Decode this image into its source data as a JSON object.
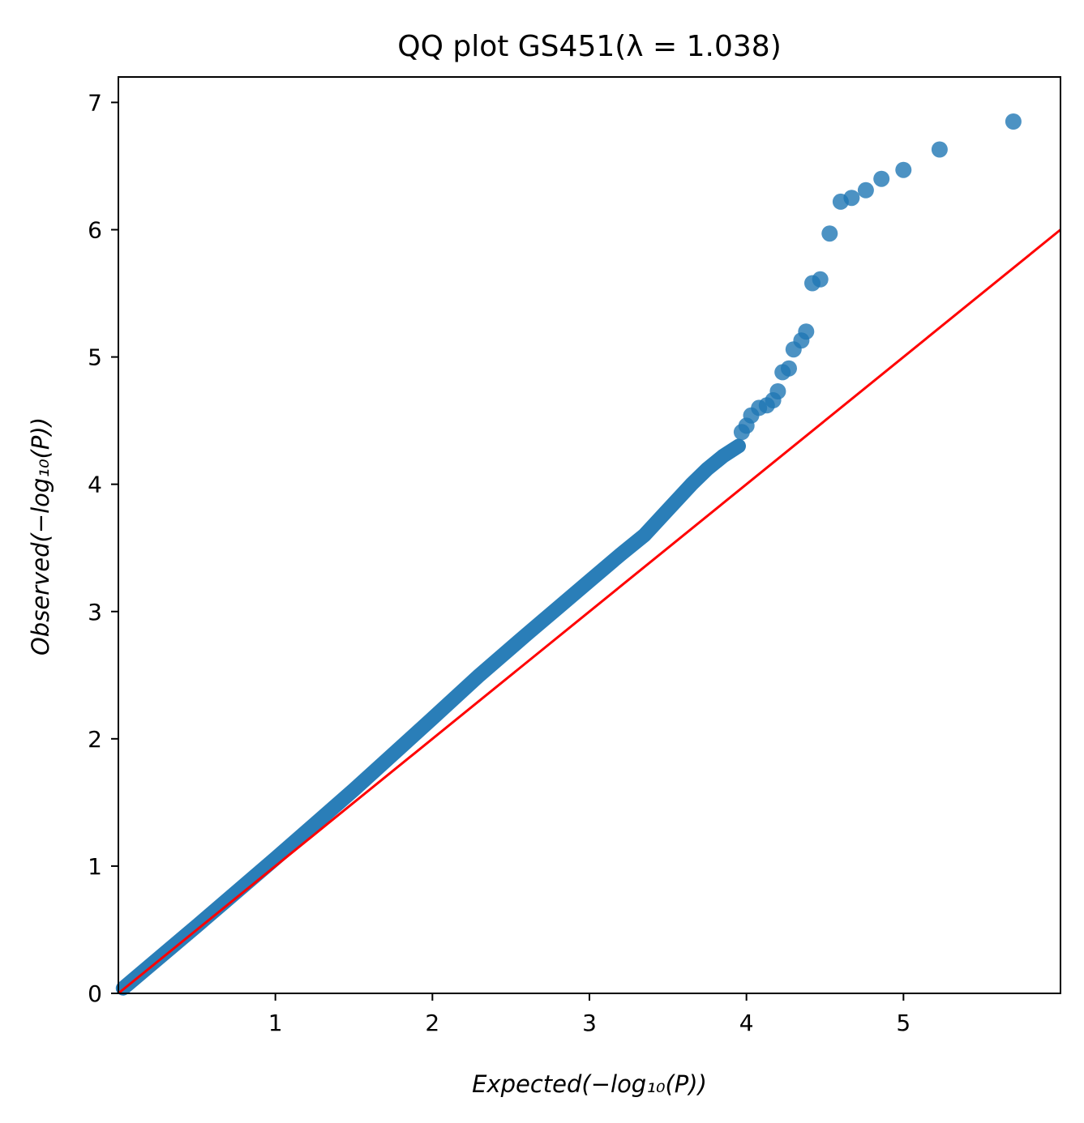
{
  "chart_data": {
    "type": "scatter",
    "title": "QQ plot GS451(λ = 1.038)",
    "xlabel": "Expected(−log₁₀(P))",
    "ylabel": "Observed(−log₁₀(P))",
    "xlim": [
      0.0,
      6.0
    ],
    "ylim": [
      0.0,
      7.2
    ],
    "x_ticks": [
      1,
      2,
      3,
      4,
      5
    ],
    "x_tick_labels": [
      "1",
      "2",
      "3",
      "4",
      "5"
    ],
    "y_ticks": [
      0,
      1,
      2,
      3,
      4,
      5,
      6,
      7
    ],
    "y_tick_labels": [
      "0",
      "1",
      "2",
      "3",
      "4",
      "5",
      "6",
      "7"
    ],
    "grid": false,
    "legend": "none",
    "colors": {
      "points": "#1f77b4",
      "reference_line": "#ff0000"
    },
    "reference_line": {
      "x": [
        0.0,
        6.0
      ],
      "y": [
        0.0,
        6.0
      ]
    },
    "series": [
      {
        "dense_band": {
          "x": [
            0.03,
            0.5,
            1.0,
            1.5,
            2.0,
            2.3,
            2.6,
            2.8,
            3.0,
            3.2,
            3.35,
            3.5,
            3.65,
            3.75,
            3.85,
            3.95
          ],
          "y": [
            0.04,
            0.53,
            1.06,
            1.6,
            2.16,
            2.5,
            2.82,
            3.03,
            3.24,
            3.45,
            3.6,
            3.8,
            4.0,
            4.12,
            4.22,
            4.3
          ]
        },
        "x": [
          3.97,
          4.0,
          4.03,
          4.08,
          4.13,
          4.17,
          4.2,
          4.23,
          4.27,
          4.3,
          4.35,
          4.38,
          4.42,
          4.47,
          4.53,
          4.6,
          4.67,
          4.76,
          4.86,
          5.0,
          5.23,
          5.7
        ],
        "y": [
          4.41,
          4.46,
          4.54,
          4.6,
          4.62,
          4.66,
          4.73,
          4.88,
          4.91,
          5.06,
          5.13,
          5.2,
          5.58,
          5.61,
          5.97,
          6.22,
          6.25,
          6.31,
          6.4,
          6.47,
          6.63,
          6.85
        ]
      }
    ]
  }
}
